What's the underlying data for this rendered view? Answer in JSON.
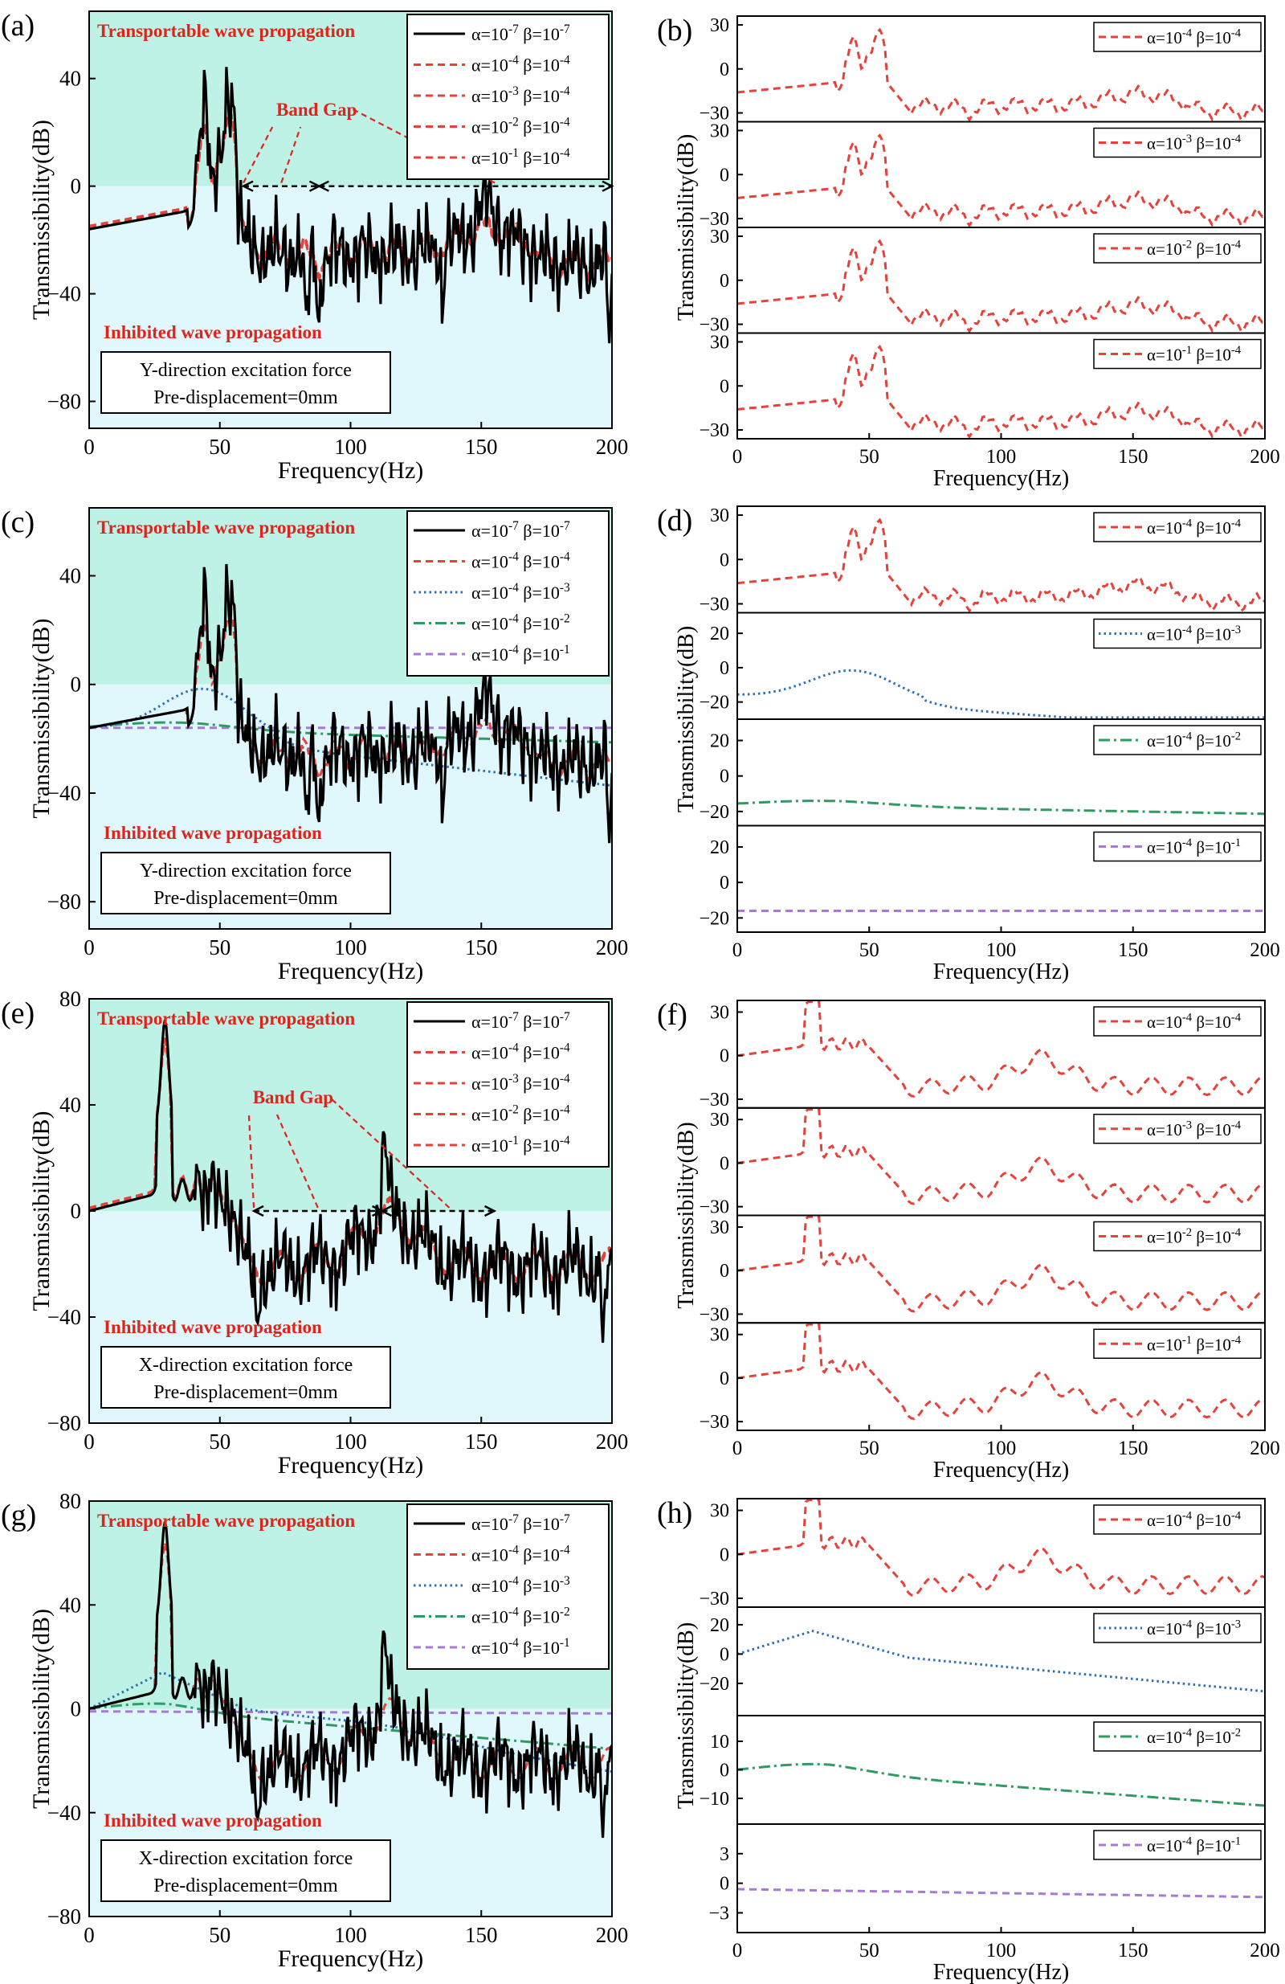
{
  "figure": {
    "texts": {
      "transportable": "Transportable wave propagation",
      "inhibited": "Inhibited wave propagation",
      "band_gap": "Band Gap",
      "xlabel": "Frequency(Hz)",
      "ylabel": "Transmissibility(dB)",
      "pre": "Pre-displacement=0mm",
      "yforce": "Y-direction excitation force",
      "xforce": "X-direction excitation force"
    },
    "colors": {
      "transport_band": "#bff2e6",
      "inhibit_band": "#e0f7fb",
      "annotation": "#e0241b",
      "black": "#000000",
      "red": "#e8413a",
      "blue": "#2f6fb5",
      "green": "#2e9b62",
      "purple": "#a77ad6"
    }
  },
  "chart_data": [
    {
      "panel": "(a)",
      "type": "line",
      "xlabel": "Frequency(Hz)",
      "ylabel": "Transmissibility(dB)",
      "xlim": [
        0,
        200
      ],
      "ylim": [
        -90,
        65
      ],
      "xticks": [
        "0",
        "50",
        "100",
        "150",
        "200"
      ],
      "yticks": [
        "−80",
        "−40",
        "0",
        "40"
      ],
      "box": "Y-direction excitation force",
      "mode": "Y",
      "damp": "alpha",
      "bandgap": [
        [
          59,
          88
        ],
        [
          88,
          200
        ]
      ],
      "series": [
        {
          "name": "α=10^-7 β=10^-7",
          "kind": "raw",
          "values": [
            [
              0,
              -16
            ],
            [
              30,
              -12
            ],
            [
              40,
              5
            ],
            [
              44,
              48
            ],
            [
              48,
              5
            ],
            [
              52,
              35
            ],
            [
              55,
              37
            ],
            [
              58,
              -10
            ],
            [
              60,
              -20
            ],
            [
              65,
              -30
            ],
            [
              70,
              -20
            ],
            [
              75,
              -25
            ],
            [
              80,
              -20
            ],
            [
              83,
              -62
            ],
            [
              87,
              -12
            ],
            [
              88,
              -48
            ],
            [
              92,
              -25
            ],
            [
              100,
              -25
            ],
            [
              110,
              -20
            ],
            [
              118,
              -32
            ],
            [
              122,
              -10
            ],
            [
              135,
              -45
            ],
            [
              140,
              -22
            ],
            [
              145,
              -15
            ],
            [
              152,
              -3
            ],
            [
              160,
              -15
            ],
            [
              170,
              -20
            ],
            [
              180,
              -20
            ],
            [
              190,
              -21
            ],
            [
              200,
              -48
            ]
          ]
        },
        {
          "name": "α=10^-4 β=10^-4",
          "kind": "alpha"
        },
        {
          "name": "α=10^-3 β=10^-4",
          "kind": "alpha"
        },
        {
          "name": "α=10^-2 β=10^-4",
          "kind": "alpha"
        },
        {
          "name": "α=10^-1 β=10^-4",
          "kind": "alpha"
        }
      ]
    },
    {
      "panel": "(c)",
      "type": "line",
      "xlabel": "Frequency(Hz)",
      "ylabel": "Transmissibility(dB)",
      "xlim": [
        0,
        200
      ],
      "ylim": [
        -90,
        65
      ],
      "xticks": [
        "0",
        "50",
        "100",
        "150",
        "200"
      ],
      "yticks": [
        "−80",
        "−40",
        "0",
        "40"
      ],
      "box": "Y-direction excitation force",
      "mode": "Y",
      "damp": "beta",
      "bandgap": [],
      "series": [
        {
          "name": "α=10^-7 β=10^-7",
          "kind": "raw",
          "values": [
            [
              0,
              -16
            ],
            [
              44,
              48
            ],
            [
              60,
              -20
            ],
            [
              83,
              -62
            ],
            [
              88,
              -48
            ],
            [
              152,
              -3
            ],
            [
              200,
              -48
            ]
          ]
        },
        {
          "name": "α=10^-4 β=10^-4",
          "kind": "alpha"
        },
        {
          "name": "α=10^-4 β=10^-3",
          "kind": "beta3"
        },
        {
          "name": "α=10^-4 β=10^-2",
          "kind": "beta2"
        },
        {
          "name": "α=10^-4 β=10^-1",
          "kind": "beta1"
        }
      ]
    },
    {
      "panel": "(e)",
      "type": "line",
      "xlabel": "Frequency(Hz)",
      "ylabel": "Transmissibility(dB)",
      "xlim": [
        0,
        200
      ],
      "ylim": [
        -80,
        80
      ],
      "xticks": [
        "0",
        "50",
        "100",
        "150",
        "200"
      ],
      "yticks": [
        "−80",
        "−40",
        "0",
        "40",
        "80"
      ],
      "box": "X-direction excitation force",
      "mode": "X",
      "damp": "alpha",
      "bandgap": [
        [
          63,
          112
        ],
        [
          112,
          155
        ]
      ],
      "series": [
        {
          "name": "α=10^-7 β=10^-7",
          "kind": "raw",
          "values": [
            [
              0,
              0
            ],
            [
              29,
              43
            ],
            [
              64,
              -42
            ],
            [
              113,
              32
            ],
            [
              197,
              -53
            ],
            [
              200,
              -20
            ]
          ]
        },
        {
          "name": "α=10^-4 β=10^-4",
          "kind": "alpha"
        },
        {
          "name": "α=10^-3 β=10^-4",
          "kind": "alpha"
        },
        {
          "name": "α=10^-2 β=10^-4",
          "kind": "alpha"
        },
        {
          "name": "α=10^-1 β=10^-4",
          "kind": "alpha"
        }
      ]
    },
    {
      "panel": "(g)",
      "type": "line",
      "xlabel": "Frequency(Hz)",
      "ylabel": "Transmissibility(dB)",
      "xlim": [
        0,
        200
      ],
      "ylim": [
        -80,
        80
      ],
      "xticks": [
        "0",
        "50",
        "100",
        "150",
        "200"
      ],
      "yticks": [
        "−80",
        "−40",
        "0",
        "40",
        "80"
      ],
      "box": "X-direction excitation force",
      "mode": "X",
      "damp": "beta",
      "bandgap": [],
      "series": [
        {
          "name": "α=10^-7 β=10^-7",
          "kind": "raw",
          "values": [
            [
              0,
              0
            ],
            [
              29,
              43
            ],
            [
              64,
              -42
            ],
            [
              113,
              32
            ],
            [
              197,
              -53
            ],
            [
              200,
              -20
            ]
          ]
        },
        {
          "name": "α=10^-4 β=10^-4",
          "kind": "alpha"
        },
        {
          "name": "α=10^-4 β=10^-3",
          "kind": "beta3"
        },
        {
          "name": "α=10^-4 β=10^-2",
          "kind": "beta2"
        },
        {
          "name": "α=10^-4 β=10^-1",
          "kind": "beta1"
        }
      ]
    },
    {
      "panel": "(b)",
      "type": "line",
      "xlabel": "Frequency(Hz)",
      "ylabel": "Transmissibility(dB)",
      "xlim": [
        0,
        200
      ],
      "xticks": [
        "0",
        "50",
        "100",
        "150",
        "200"
      ],
      "mode": "Y",
      "subplots": [
        {
          "name": "α=10^-4 β=10^-4",
          "kind": "alpha",
          "ylim": [
            -36,
            36
          ],
          "yticks": [
            "30",
            "0",
            "−30"
          ]
        },
        {
          "name": "α=10^-3 β=10^-4",
          "kind": "alpha",
          "ylim": [
            -36,
            36
          ],
          "yticks": [
            "30",
            "0",
            "−30"
          ]
        },
        {
          "name": "α=10^-2 β=10^-4",
          "kind": "alpha",
          "ylim": [
            -36,
            36
          ],
          "yticks": [
            "30",
            "0",
            "−30"
          ]
        },
        {
          "name": "α=10^-1 β=10^-4",
          "kind": "alpha",
          "ylim": [
            -36,
            36
          ],
          "yticks": [
            "30",
            "0",
            "−30"
          ]
        }
      ]
    },
    {
      "panel": "(d)",
      "type": "line",
      "xlabel": "Frequency(Hz)",
      "ylabel": "Transmissibility(dB)",
      "xlim": [
        0,
        200
      ],
      "xticks": [
        "0",
        "50",
        "100",
        "150",
        "200"
      ],
      "mode": "Y",
      "subplots": [
        {
          "name": "α=10^-4 β=10^-4",
          "kind": "alpha",
          "ylim": [
            -36,
            36
          ],
          "yticks": [
            "30",
            "0",
            "−30"
          ]
        },
        {
          "name": "α=10^-4 β=10^-3",
          "kind": "beta3",
          "ylim": [
            -30,
            32
          ],
          "yticks": [
            "20",
            "0",
            "−20"
          ]
        },
        {
          "name": "α=10^-4 β=10^-2",
          "kind": "beta2",
          "ylim": [
            -28,
            32
          ],
          "yticks": [
            "20",
            "0",
            "−20"
          ]
        },
        {
          "name": "α=10^-4 β=10^-1",
          "kind": "beta1",
          "ylim": [
            -28,
            32
          ],
          "yticks": [
            "20",
            "0",
            "−20"
          ]
        }
      ]
    },
    {
      "panel": "(f)",
      "type": "line",
      "xlabel": "Frequency(Hz)",
      "ylabel": "Transmissibility(dB)",
      "xlim": [
        0,
        200
      ],
      "xticks": [
        "0",
        "50",
        "100",
        "150",
        "200"
      ],
      "mode": "X",
      "subplots": [
        {
          "name": "α=10^-4 β=10^-4",
          "kind": "alpha",
          "ylim": [
            -36,
            38
          ],
          "yticks": [
            "30",
            "0",
            "−30"
          ]
        },
        {
          "name": "α=10^-3 β=10^-4",
          "kind": "alpha",
          "ylim": [
            -36,
            38
          ],
          "yticks": [
            "30",
            "0",
            "−30"
          ]
        },
        {
          "name": "α=10^-2 β=10^-4",
          "kind": "alpha",
          "ylim": [
            -36,
            38
          ],
          "yticks": [
            "30",
            "0",
            "−30"
          ]
        },
        {
          "name": "α=10^-1 β=10^-4",
          "kind": "alpha",
          "ylim": [
            -36,
            38
          ],
          "yticks": [
            "30",
            "0",
            "−30"
          ]
        }
      ]
    },
    {
      "panel": "(h)",
      "type": "line",
      "xlabel": "Frequency(Hz)",
      "ylabel": "Transmissibility(dB)",
      "xlim": [
        0,
        200
      ],
      "xticks": [
        "0",
        "50",
        "100",
        "150",
        "200"
      ],
      "mode": "X",
      "subplots": [
        {
          "name": "α=10^-4 β=10^-4",
          "kind": "alpha",
          "ylim": [
            -36,
            38
          ],
          "yticks": [
            "30",
            "0",
            "−30"
          ]
        },
        {
          "name": "α=10^-4 β=10^-3",
          "kind": "beta3",
          "ylim": [
            -42,
            32
          ],
          "yticks": [
            "20",
            "0",
            "−20"
          ]
        },
        {
          "name": "α=10^-4 β=10^-2",
          "kind": "beta2",
          "ylim": [
            -19,
            19
          ],
          "yticks": [
            "10",
            "0",
            "−10"
          ]
        },
        {
          "name": "α=10^-4 β=10^-1",
          "kind": "beta1",
          "ylim": [
            -5,
            6
          ],
          "yticks": [
            "3",
            "0",
            "−3"
          ]
        }
      ]
    }
  ]
}
